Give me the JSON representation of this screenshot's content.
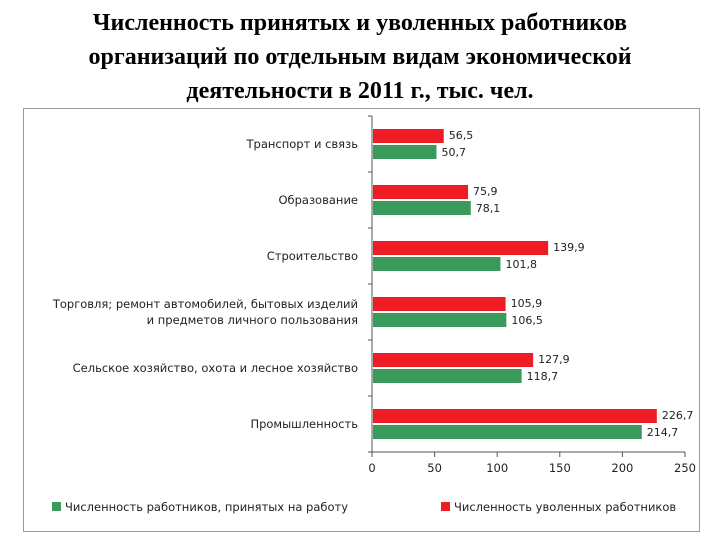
{
  "title_lines": [
    "Численность принятых и уволенных работников",
    "организаций по отдельным видам экономической",
    "деятельности в 2011 г., тыс. чел."
  ],
  "chart_data": {
    "type": "bar",
    "orientation": "horizontal",
    "categories": [
      [
        "Транспорт и связь"
      ],
      [
        "Образование"
      ],
      [
        "Строительство"
      ],
      [
        "Торговля; ремонт автомобилей, бытовых изделий",
        "и предметов личного пользования"
      ],
      [
        "Сельское хозяйство, охота и лесное хозяйство"
      ],
      [
        "Промышленность"
      ]
    ],
    "series": [
      {
        "name": "Численность уволенных работников",
        "color": "#ee1c24",
        "values": [
          56.5,
          75.9,
          139.9,
          105.9,
          127.9,
          226.7
        ],
        "labels": [
          "56,5",
          "75,9",
          "139,9",
          "105,9",
          "127,9",
          "226,7"
        ]
      },
      {
        "name": "Численность работников, принятых на работу",
        "color": "#3a9a5b",
        "values": [
          50.7,
          78.1,
          101.8,
          106.5,
          118.7,
          214.7
        ],
        "labels": [
          "50,7",
          "78,1",
          "101,8",
          "106,5",
          "118,7",
          "214,7"
        ]
      }
    ],
    "xlim": [
      0,
      250
    ],
    "ticks": [
      0,
      50,
      100,
      150,
      200,
      250
    ],
    "grid": false,
    "legend_position": "bottom",
    "legend_order": [
      1,
      0
    ]
  }
}
